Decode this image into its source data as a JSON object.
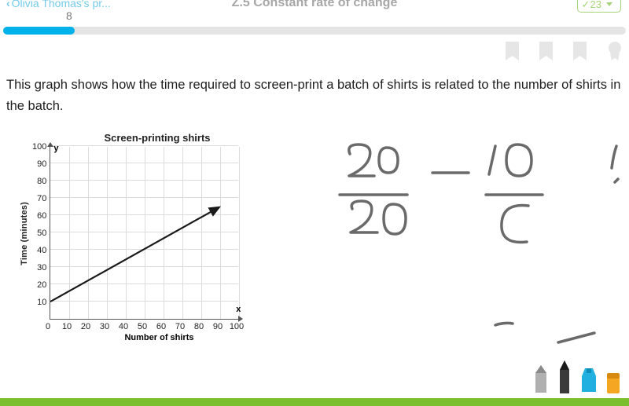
{
  "header": {
    "back_label": "Olivia Thomas's pr...",
    "title": "Z.5 Constant rate of change",
    "score": "23"
  },
  "progress": {
    "label": "8",
    "percent": 11.5
  },
  "question": "This graph shows how the time required to screen-print a batch of shirts is related to the number of shirts in the batch.",
  "chart": {
    "type": "line",
    "title": "Screen-printing shirts",
    "xlabel": "Number of shirts",
    "ylabel": "Time (minutes)",
    "x_axis_letter": "x",
    "y_axis_letter": "y",
    "xlim": [
      0,
      100
    ],
    "ylim": [
      0,
      100
    ],
    "xtick_step": 10,
    "ytick_step": 10,
    "xticks": [
      "0",
      "10",
      "20",
      "30",
      "40",
      "50",
      "60",
      "70",
      "80",
      "90",
      "100"
    ],
    "yticks": [
      "100",
      "90",
      "80",
      "70",
      "60",
      "50",
      "40",
      "30",
      "20",
      "10"
    ],
    "line_points": [
      [
        0,
        10
      ],
      [
        90,
        65
      ]
    ],
    "line_color": "#1a1a1a",
    "line_width": 2.2,
    "grid_color": "#dcdcdc",
    "background_color": "#ffffff",
    "axis_color": "#555555"
  },
  "handwriting": {
    "stroke_color": "#6a6a6a",
    "stroke_width": 3.5
  },
  "colors": {
    "accent": "#00b1ea",
    "green": "#7bbf2e",
    "score_border": "#7fc241"
  }
}
